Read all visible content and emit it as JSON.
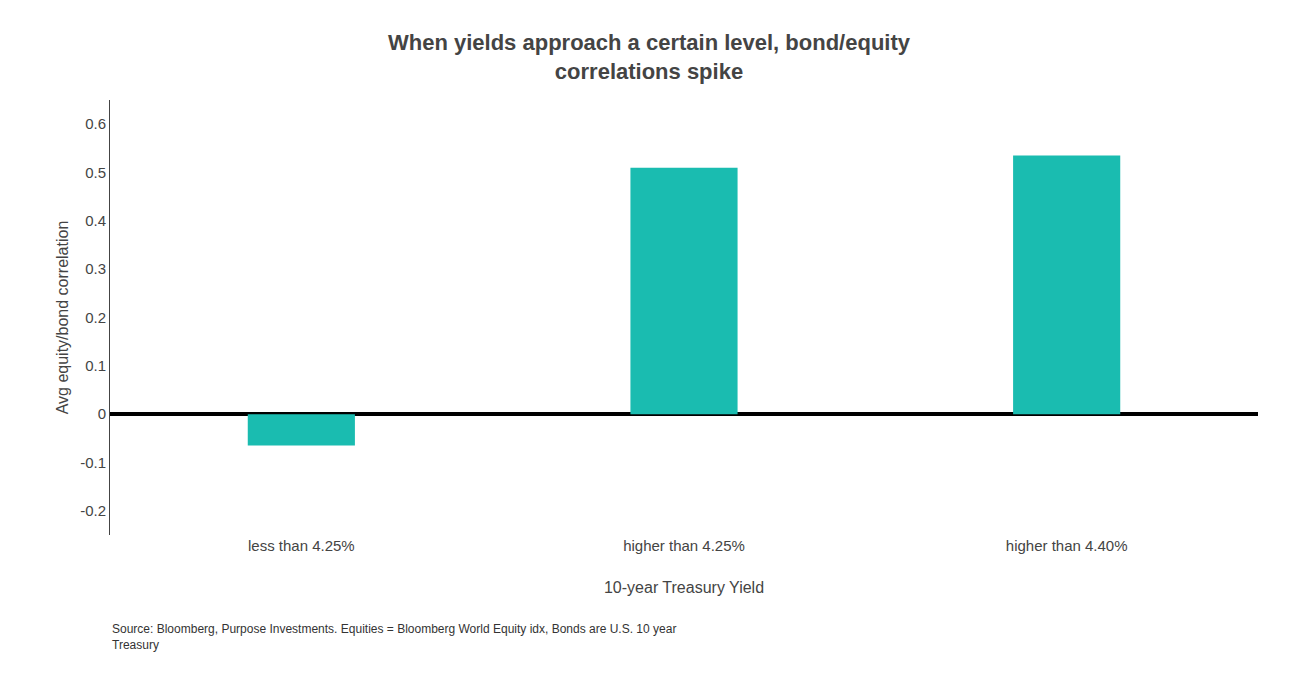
{
  "chart_data": {
    "type": "bar",
    "title": "When yields approach a certain level, bond/equity\ncorrelations spike",
    "xlabel": "10-year Treasury Yield",
    "ylabel": "Avg equity/bond correlation",
    "categories": [
      "less than 4.25%",
      "higher than 4.25%",
      "higher than 4.40%"
    ],
    "values": [
      -0.065,
      0.51,
      0.535
    ],
    "color": "#1ABCB0",
    "ylim": [
      -0.25,
      0.65
    ],
    "yticks": [
      -0.2,
      -0.1,
      0,
      0.1,
      0.2,
      0.3,
      0.4,
      0.5,
      0.6
    ],
    "grid": false,
    "annotations": [
      "Source: Bloomberg, Purpose Investments. Equities = Bloomberg World Equity idx, Bonds are U.S. 10 year\nTreasury"
    ]
  }
}
